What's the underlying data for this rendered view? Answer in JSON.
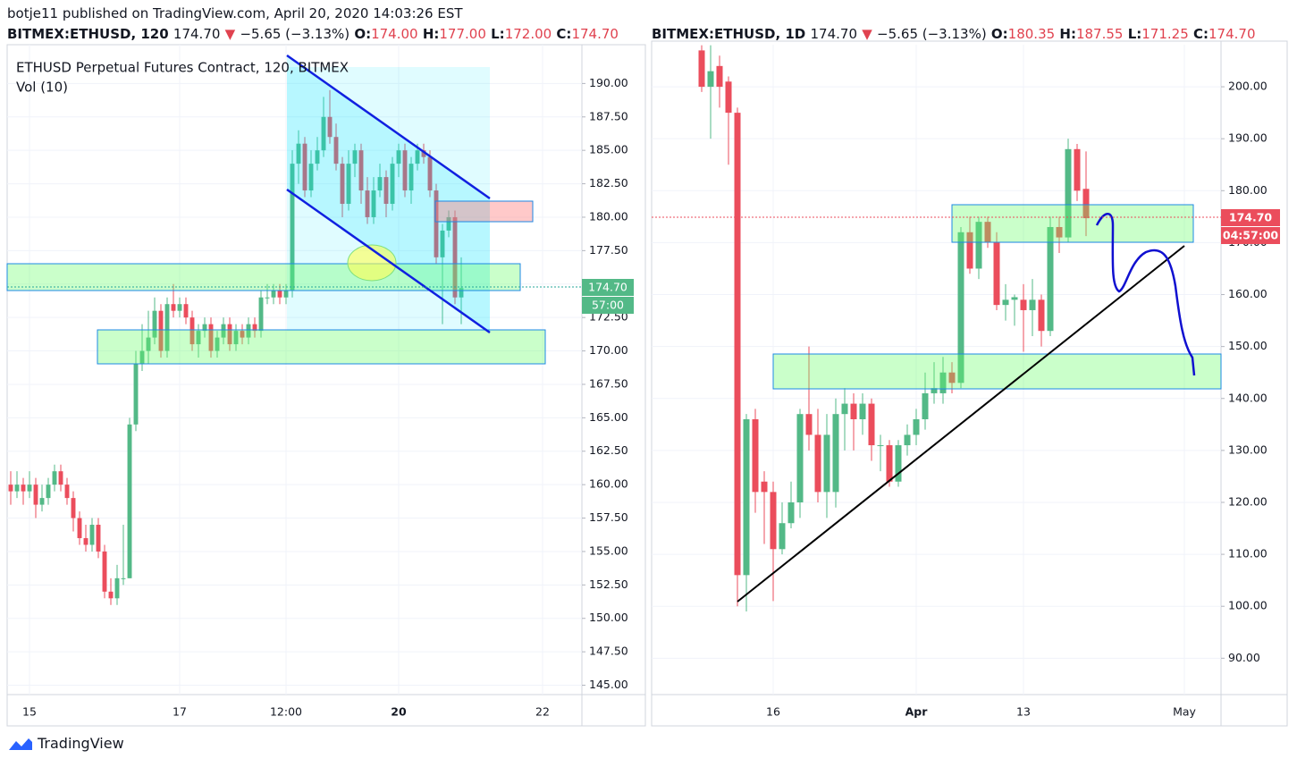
{
  "header": {
    "publisher": "botje11 published on TradingView.com, April 20, 2020 14:03:26 EST",
    "left": {
      "symbol": "BITMEX:ETHUSD, 120",
      "price": "174.70",
      "arrow": "▼",
      "change": "−5.65 (−3.13%)",
      "o_label": "O:",
      "o": "174.00",
      "h_label": "H:",
      "h": "177.00",
      "l_label": "L:",
      "l": "172.00",
      "c_label": "C:",
      "c": "174.70"
    },
    "right": {
      "symbol": "BITMEX:ETHUSD, 1D",
      "price": "174.70",
      "arrow": "▼",
      "change": "−5.65 (−3.13%)",
      "o_label": "O:",
      "o": "180.35",
      "h_label": "H:",
      "h": "187.55",
      "l_label": "L:",
      "l": "171.25",
      "c_label": "C:",
      "c": "174.70"
    }
  },
  "footer": {
    "brand": "TradingView"
  },
  "chart_data": [
    {
      "type": "candlestick",
      "title": "ETHUSD Perpetual Futures Contract, 120, BITMEX",
      "subtitle": "Vol (10)",
      "up_color": "#53b987",
      "down_color": "#eb4d5c",
      "grid": true,
      "price_label": "174.70",
      "countdown_label": "57:00",
      "ylim": [
        144.3,
        192.9
      ],
      "yticks": [
        {
          "value": 145,
          "label": "145.00"
        },
        {
          "value": 147.5,
          "label": "147.50"
        },
        {
          "value": 150,
          "label": "150.00"
        },
        {
          "value": 152.5,
          "label": "152.50"
        },
        {
          "value": 155,
          "label": "155.00"
        },
        {
          "value": 157.5,
          "label": "157.50"
        },
        {
          "value": 160,
          "label": "160.00"
        },
        {
          "value": 162.5,
          "label": "162.50"
        },
        {
          "value": 165,
          "label": "165.00"
        },
        {
          "value": 167.5,
          "label": "167.50"
        },
        {
          "value": 170,
          "label": "170.00"
        },
        {
          "value": 172.5,
          "label": "172.50"
        },
        {
          "value": 175,
          "label": "175.00"
        },
        {
          "value": 177.5,
          "label": "177.50"
        },
        {
          "value": 180,
          "label": "180.00"
        },
        {
          "value": 182.5,
          "label": "182.50"
        },
        {
          "value": 185,
          "label": "185.00"
        },
        {
          "value": 187.5,
          "label": "187.50"
        },
        {
          "value": 190,
          "label": "190.00"
        }
      ],
      "categories": [
        null,
        null,
        null,
        "15",
        null,
        null,
        null,
        null,
        null,
        null,
        null,
        null,
        null,
        null,
        null,
        null,
        null,
        null,
        null,
        null,
        null,
        null,
        null,
        null,
        null,
        null,
        null,
        "17",
        null,
        null,
        null,
        null,
        null,
        null,
        null,
        null,
        null,
        null,
        null,
        null,
        null,
        null,
        null,
        null,
        "12:00",
        null,
        null,
        null,
        null,
        null,
        null,
        null,
        null,
        null,
        null,
        null,
        null,
        null,
        null,
        null,
        null,
        null,
        "20",
        null,
        null,
        null,
        null,
        null,
        null,
        null,
        null,
        null,
        null,
        null,
        null,
        null,
        null,
        null,
        null,
        null,
        null,
        null,
        null,
        null,
        null,
        "22"
      ],
      "ohlc": [
        [
          160,
          161,
          158.5,
          159.5
        ],
        [
          159.5,
          161,
          159,
          160
        ],
        [
          160,
          160.5,
          158.5,
          159.5
        ],
        [
          159.5,
          161,
          159,
          160
        ],
        [
          160,
          160.5,
          157.5,
          158.5
        ],
        [
          158.5,
          160,
          158,
          159
        ],
        [
          159,
          160.5,
          158.5,
          160
        ],
        [
          160,
          161.5,
          159.5,
          161
        ],
        [
          161,
          161.5,
          159.5,
          160
        ],
        [
          160,
          160.5,
          158.5,
          159
        ],
        [
          159,
          159.5,
          156.5,
          157.5
        ],
        [
          157.5,
          158,
          155.5,
          156
        ],
        [
          156,
          157,
          155,
          155.5
        ],
        [
          155.5,
          157.5,
          155,
          157
        ],
        [
          157,
          157.5,
          154.5,
          155
        ],
        [
          155,
          155.5,
          151.5,
          152
        ],
        [
          152,
          153,
          151,
          151.5
        ],
        [
          151.5,
          154,
          151,
          153
        ],
        [
          153,
          157,
          152.5,
          153
        ],
        [
          153,
          165,
          153,
          164.5
        ],
        [
          164.5,
          170,
          164,
          169
        ],
        [
          169,
          172,
          168.5,
          170
        ],
        [
          170,
          173,
          169,
          171
        ],
        [
          171,
          174,
          170.5,
          173
        ],
        [
          173,
          173.5,
          169.5,
          170
        ],
        [
          170,
          174,
          169.5,
          173.5
        ],
        [
          173.5,
          175,
          172.5,
          173
        ],
        [
          173,
          174,
          172.5,
          173.5
        ],
        [
          173.5,
          174,
          172,
          172.5
        ],
        [
          172.5,
          173,
          170,
          170.5
        ],
        [
          170.5,
          172,
          169.5,
          171.5
        ],
        [
          171.5,
          172.5,
          171,
          172
        ],
        [
          172,
          172.5,
          169.5,
          170
        ],
        [
          170,
          171.5,
          169.5,
          171
        ],
        [
          171,
          172.5,
          170.5,
          172
        ],
        [
          172,
          172.5,
          170,
          170.5
        ],
        [
          170.5,
          172,
          170,
          171.5
        ],
        [
          171.5,
          172,
          170.5,
          171
        ],
        [
          171,
          172.5,
          170.5,
          172
        ],
        [
          172,
          172.5,
          171,
          171.5
        ],
        [
          171.5,
          174.5,
          171,
          174
        ],
        [
          174,
          175,
          173.5,
          174
        ],
        [
          174,
          175,
          173.5,
          174.5
        ],
        [
          174.5,
          175,
          173.5,
          174
        ],
        [
          174,
          175,
          173.5,
          174.5
        ],
        [
          174.5,
          185,
          174,
          184
        ],
        [
          184,
          186.5,
          182.5,
          185.5
        ],
        [
          185.5,
          186,
          181.5,
          182
        ],
        [
          182,
          185,
          181.5,
          184
        ],
        [
          184,
          186,
          183.5,
          185
        ],
        [
          185,
          189,
          184.5,
          187.5
        ],
        [
          187.5,
          189.5,
          185.5,
          186
        ],
        [
          186,
          187,
          183.5,
          184
        ],
        [
          184,
          184.5,
          180,
          181
        ],
        [
          181,
          185,
          180.5,
          184
        ],
        [
          184,
          185.5,
          183,
          185
        ],
        [
          185,
          185.5,
          181,
          182
        ],
        [
          182,
          183,
          179.5,
          180
        ],
        [
          180,
          183,
          179.5,
          182
        ],
        [
          182,
          184,
          181.5,
          183
        ],
        [
          183,
          183.5,
          180,
          181
        ],
        [
          181,
          184.5,
          180.5,
          184
        ],
        [
          184,
          185.5,
          183,
          185
        ],
        [
          185,
          185.5,
          181.5,
          182
        ],
        [
          182,
          184.5,
          181,
          184
        ],
        [
          184,
          185.5,
          183.5,
          185
        ],
        [
          185,
          185.5,
          184,
          184.5
        ],
        [
          184.5,
          185,
          181.5,
          182
        ],
        [
          182,
          182.5,
          176.5,
          177
        ],
        [
          177,
          179.5,
          172,
          179
        ],
        [
          179,
          180.5,
          178.5,
          180
        ],
        [
          180,
          180.5,
          173.5,
          174
        ],
        [
          174,
          177,
          172,
          174.7
        ],
        null,
        null,
        null,
        null,
        null,
        null,
        null,
        null,
        null,
        null,
        null,
        null,
        null
      ]
    },
    {
      "type": "candlestick",
      "up_color": "#53b987",
      "down_color": "#eb4d5c",
      "grid": true,
      "price_label": "174.70",
      "countdown_label": "04:57:00",
      "ylim": [
        83,
        208.1
      ],
      "yticks": [
        {
          "value": 90,
          "label": "90.00"
        },
        {
          "value": 100,
          "label": "100.00"
        },
        {
          "value": 110,
          "label": "110.00"
        },
        {
          "value": 120,
          "label": "120.00"
        },
        {
          "value": 130,
          "label": "130.00"
        },
        {
          "value": 140,
          "label": "140.00"
        },
        {
          "value": 150,
          "label": "150.00"
        },
        {
          "value": 160,
          "label": "160.00"
        },
        {
          "value": 170,
          "label": "170.00"
        },
        {
          "value": 180,
          "label": "180.00"
        },
        {
          "value": 190,
          "label": "190.00"
        },
        {
          "value": 200,
          "label": "200.00"
        }
      ],
      "categories": [
        null,
        null,
        null,
        null,
        null,
        null,
        null,
        null,
        "16",
        null,
        null,
        null,
        null,
        null,
        null,
        null,
        null,
        null,
        null,
        null,
        null,
        null,
        null,
        null,
        "Apr",
        null,
        null,
        null,
        null,
        null,
        null,
        null,
        null,
        null,
        null,
        null,
        "13",
        null,
        null,
        null,
        null,
        null,
        null,
        null,
        null,
        null,
        null,
        null,
        null,
        null,
        null,
        null,
        null,
        null,
        "May",
        null
      ],
      "ohlc": [
        [
          207,
          208,
          199,
          200
        ],
        [
          200,
          208,
          190,
          203
        ],
        [
          204,
          206,
          196,
          200
        ],
        [
          201,
          202,
          185,
          195
        ],
        [
          195,
          196,
          100,
          106
        ],
        [
          106,
          137,
          99,
          136
        ],
        [
          136,
          138,
          118,
          122
        ],
        [
          124,
          126,
          112,
          122
        ],
        [
          122,
          124,
          101,
          111
        ],
        [
          111,
          120,
          110,
          116
        ],
        [
          116,
          124,
          115,
          120
        ],
        [
          120,
          138,
          117,
          137
        ],
        [
          137,
          150,
          130,
          133
        ],
        [
          133,
          138,
          120,
          122
        ],
        [
          122,
          137,
          117,
          133
        ],
        [
          122,
          140,
          119,
          137
        ],
        [
          137,
          142,
          130,
          139
        ],
        [
          139,
          141,
          130,
          136
        ],
        [
          136,
          141,
          133,
          139
        ],
        [
          139,
          140,
          128,
          131
        ],
        [
          131,
          133,
          126,
          131
        ],
        [
          131,
          132,
          123,
          124
        ],
        [
          124,
          132,
          123,
          131
        ],
        [
          131,
          135,
          129,
          133
        ],
        [
          133,
          138,
          131,
          136
        ],
        [
          136,
          145,
          134,
          141
        ],
        [
          141,
          147,
          139,
          142
        ],
        [
          141,
          148,
          139,
          145
        ],
        [
          145,
          147,
          141,
          143
        ],
        [
          143,
          173,
          142,
          172
        ],
        [
          172,
          175,
          164,
          165
        ],
        [
          165,
          175,
          163,
          174
        ],
        [
          174,
          175,
          169,
          170
        ],
        [
          170,
          172,
          157,
          158
        ],
        [
          158,
          162,
          155,
          159
        ],
        [
          159,
          160,
          154,
          159.5
        ],
        [
          159,
          162,
          149,
          157
        ],
        [
          157,
          163,
          152,
          159
        ],
        [
          159,
          160,
          150,
          153
        ],
        [
          153,
          175,
          152,
          173
        ],
        [
          173,
          175,
          168,
          171
        ],
        [
          171,
          190,
          170,
          188
        ],
        [
          188,
          189,
          178,
          180
        ],
        [
          180.35,
          187.55,
          171.25,
          174.7
        ],
        null,
        null,
        null,
        null,
        null,
        null,
        null,
        null,
        null,
        null,
        null,
        null
      ]
    }
  ]
}
